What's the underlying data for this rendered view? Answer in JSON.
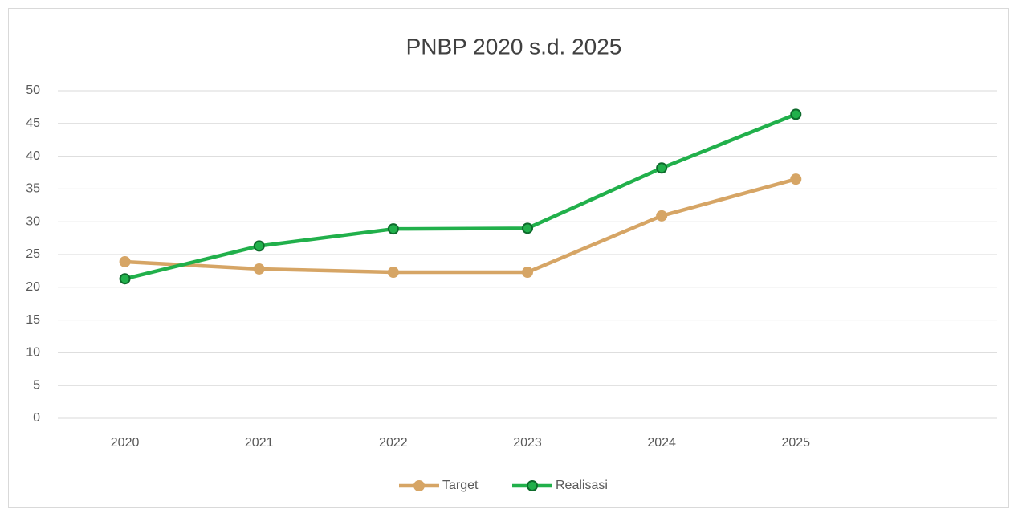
{
  "chart_data": {
    "type": "line",
    "title": "PNBP 2020 s.d. 2025",
    "categories": [
      "2020",
      "2021",
      "2022",
      "2023",
      "2024",
      "2025",
      null
    ],
    "series": [
      {
        "name": "Target",
        "color": "#d6a565",
        "values": [
          23.9,
          22.8,
          22.3,
          22.3,
          30.9,
          36.5,
          null
        ]
      },
      {
        "name": "Realisasi",
        "color": "#21b04b",
        "values": [
          21.3,
          26.3,
          28.9,
          29.0,
          38.2,
          46.4,
          null
        ]
      }
    ],
    "ylim": [
      0,
      50
    ],
    "yticks": [
      0,
      5,
      10,
      15,
      20,
      25,
      30,
      35,
      40,
      45,
      50
    ],
    "grid": true,
    "legend": "bottom"
  }
}
